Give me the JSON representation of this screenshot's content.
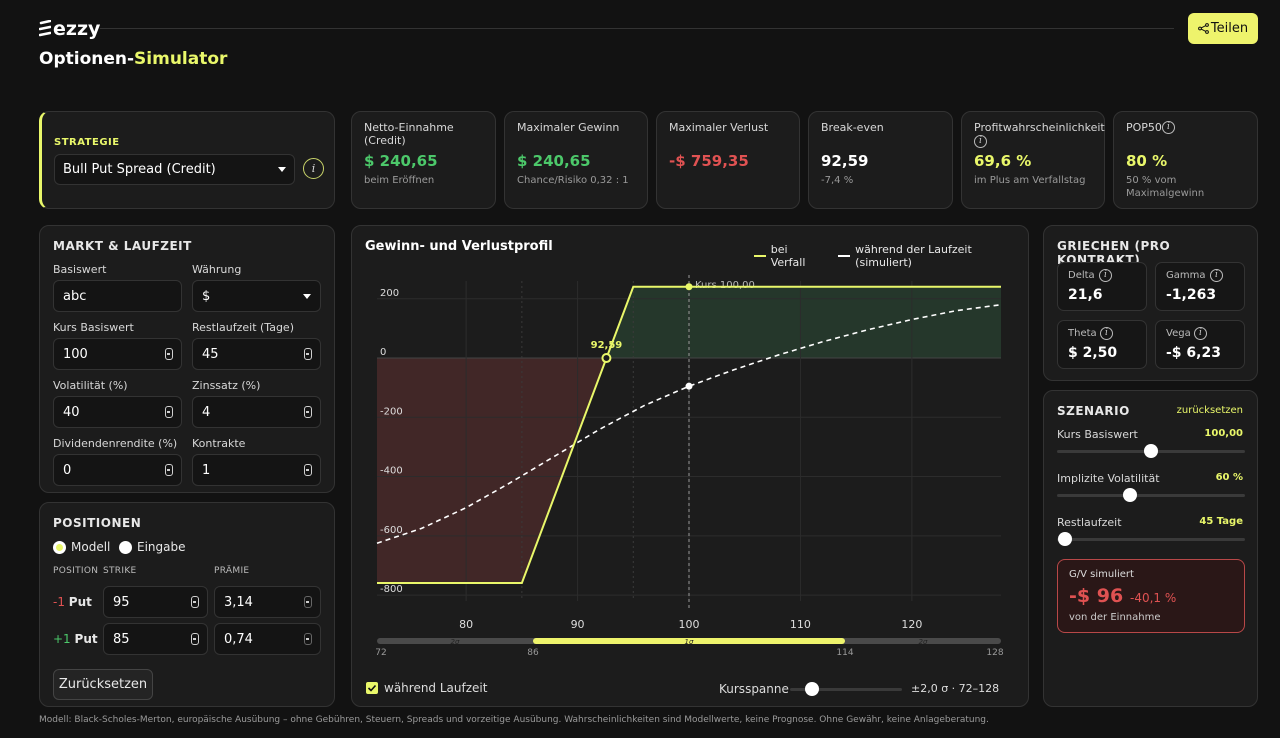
{
  "header": {
    "logo_text": "ezzy",
    "title_a": "Optionen-",
    "title_b": "Simulator",
    "share_label": "Teilen"
  },
  "strategy": {
    "section_label": "STRATEGIE",
    "selected": "Bull Put Spread (Credit)"
  },
  "stats": [
    {
      "title": "Netto-Einnahme (Credit)",
      "value": "$ 240,65",
      "sub": "beim Eröffnen",
      "color": "#4cc86a"
    },
    {
      "title": "Maximaler Gewinn",
      "value": "$ 240,65",
      "sub": "Chance/Risiko 0,32 : 1",
      "color": "#4cc86a"
    },
    {
      "title": "Maximaler Verlust",
      "value": "-$ 759,35",
      "sub": "",
      "color": "#e05252"
    },
    {
      "title": "Break-even",
      "value": "92,59",
      "sub": "-7,4 %",
      "color": "#ffffff"
    },
    {
      "title": "Profitwahrscheinlichkeit",
      "value": "69,6 %",
      "sub": "im Plus am Verfallstag",
      "color": "#e9f76a"
    },
    {
      "title": "POP50",
      "value": "80 %",
      "sub": "50 % vom Maximalgewinn",
      "color": "#e9f76a"
    }
  ],
  "market": {
    "title": "MARKT & LAUFZEIT",
    "underlying_label": "Basiswert",
    "underlying_value": "abc",
    "currency_label": "Währung",
    "currency_value": "$",
    "price_label": "Kurs Basiswert",
    "price_value": "100",
    "days_label": "Restlaufzeit (Tage)",
    "days_value": "45",
    "vol_label": "Volatilität (%)",
    "vol_value": "40",
    "rate_label": "Zinssatz (%)",
    "rate_value": "4",
    "div_label": "Dividendenrendite (%)",
    "div_value": "0",
    "contracts_label": "Kontrakte",
    "contracts_value": "1"
  },
  "positions": {
    "title": "POSITIONEN",
    "mode_model": "Modell",
    "mode_input": "Eingabe",
    "col_position": "POSITION",
    "col_strike": "STRIKE",
    "col_premium": "PRÄMIE",
    "rows": [
      {
        "qty": "-1",
        "type": "Put",
        "strike": "95",
        "premium": "3,14",
        "qty_color": "#e05252"
      },
      {
        "qty": "+1",
        "type": "Put",
        "strike": "85",
        "premium": "0,74",
        "qty_color": "#4cc86a"
      }
    ],
    "reset_label": "Zurücksetzen"
  },
  "chart_panel": {
    "title": "Gewinn- und Verlustprofil",
    "legend_expiry": "bei Verfall",
    "legend_sim": "während der Laufzeit (simuliert)",
    "price_marker_label": "Kurs 100,00",
    "breakeven_label": "92,59",
    "checkbox_label": "während Laufzeit",
    "range_label": "Kursspanne",
    "range_value": "±2,0 σ · 72–128"
  },
  "chart_data": {
    "type": "line",
    "xlim": [
      72,
      128
    ],
    "ylim": [
      -820,
      260
    ],
    "x_ticks": [
      80,
      90,
      100,
      110,
      120
    ],
    "y_ticks": [
      200,
      0,
      -200,
      -400,
      -600,
      -800
    ],
    "series": [
      {
        "name": "bei Verfall",
        "style": "solid",
        "color": "#e9f76a",
        "points": [
          [
            72,
            -759.35
          ],
          [
            85,
            -759.35
          ],
          [
            95,
            240.65
          ],
          [
            128,
            240.65
          ]
        ]
      },
      {
        "name": "während der Laufzeit (simuliert)",
        "style": "dashed",
        "color": "#ffffff",
        "points": [
          [
            72,
            -625
          ],
          [
            76,
            -575
          ],
          [
            80,
            -505
          ],
          [
            84,
            -420
          ],
          [
            88,
            -330
          ],
          [
            92,
            -240
          ],
          [
            96,
            -160
          ],
          [
            100,
            -95
          ],
          [
            104,
            -40
          ],
          [
            108,
            10
          ],
          [
            112,
            55
          ],
          [
            116,
            95
          ],
          [
            120,
            130
          ],
          [
            124,
            160
          ],
          [
            128,
            180
          ]
        ]
      }
    ],
    "current_price": 100,
    "breakeven": 92.59,
    "sigma_band": {
      "ticks": [
        72,
        86,
        114,
        128
      ],
      "labels": [
        "2σ",
        "1σ",
        "2σ"
      ],
      "inner": [
        86,
        114
      ]
    }
  },
  "greeks": {
    "title": "GRIECHEN (PRO KONTRAKT)",
    "items": [
      {
        "label": "Delta",
        "value": "21,6"
      },
      {
        "label": "Gamma",
        "value": "-1,263"
      },
      {
        "label": "Theta",
        "value": "$ 2,50"
      },
      {
        "label": "Vega",
        "value": "-$ 6,23"
      }
    ]
  },
  "scenario": {
    "title": "SZENARIO",
    "reset": "zurücksetzen",
    "sliders": [
      {
        "label": "Kurs Basiswert",
        "value": "100,00",
        "fraction": 0.5
      },
      {
        "label": "Implizite Volatilität",
        "value": "60 %",
        "fraction": 0.39
      },
      {
        "label": "Restlaufzeit",
        "value": "45 Tage",
        "fraction": 0.0
      }
    ],
    "pl_title": "G/V simuliert",
    "pl_value": "-$ 96",
    "pl_pct": "-40,1 %",
    "pl_sub": "von der Einnahme"
  },
  "footer": "Modell: Black-Scholes-Merton, europäische Ausübung – ohne Gebühren, Steuern, Spreads und vorzeitige Ausübung. Wahrscheinlichkeiten sind Modellwerte, keine Prognose. Ohne Gewähr, keine Anlageberatung."
}
